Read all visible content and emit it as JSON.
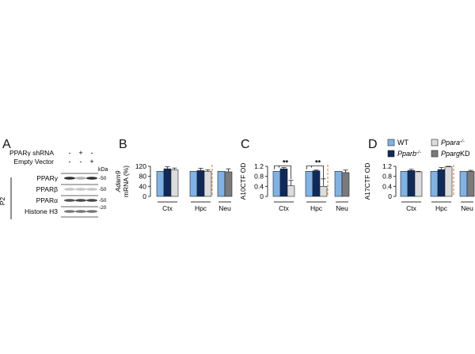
{
  "panels": {
    "A": {
      "label": "A"
    },
    "B": {
      "label": "B"
    },
    "C": {
      "label": "C"
    },
    "D": {
      "label": "D"
    }
  },
  "western_blot": {
    "conditions": [
      {
        "name": "PPARγ shRNA",
        "values": [
          "-",
          "+",
          "-"
        ]
      },
      {
        "name": "Empty Vector",
        "values": [
          "-",
          "-",
          "+"
        ]
      }
    ],
    "unit_label": "kDa",
    "fraction_label": "P2",
    "bands": [
      {
        "name": "PPARγ",
        "kda": "-50",
        "intensity": [
          0.9,
          0.35,
          0.9
        ]
      },
      {
        "name": "PPARβ",
        "kda": "-50",
        "intensity": [
          0.25,
          0.25,
          0.25
        ]
      },
      {
        "name": "PPARα",
        "kda": "-50",
        "intensity": [
          0.75,
          0.8,
          0.8
        ]
      },
      {
        "name": "Histone H3",
        "kda": "-20",
        "intensity": [
          0.6,
          0.6,
          0.6
        ]
      }
    ]
  },
  "legend": {
    "items": [
      {
        "label": "WT",
        "italic": false,
        "color": "#7fb3e6"
      },
      {
        "label": "Pparb",
        "suffix": "-/-",
        "italic": true,
        "color": "#0f2a5a"
      },
      {
        "label": "Ppara",
        "suffix": "-/-",
        "italic": true,
        "color": "#dcdcdc"
      },
      {
        "label": "Pparg",
        "suffix": "KD",
        "italic": true,
        "color": "#7a7a7a"
      }
    ]
  },
  "colors": {
    "wt": "#7fb3e6",
    "pparb": "#0f2a5a",
    "ppara": "#dcdcdc",
    "pparg": "#7a7a7a",
    "divider": "#e8955a",
    "axis": "#222222"
  },
  "chart_data": [
    {
      "panel": "B",
      "type": "bar",
      "ylabel": "Adam9 mRNA (%)",
      "ylim": [
        0,
        120
      ],
      "yticks": [
        0,
        40,
        80,
        120
      ],
      "categories": [
        "Ctx",
        "Hpc",
        "Neu"
      ],
      "series": [
        {
          "name": "WT",
          "values": [
            100,
            100,
            100
          ]
        },
        {
          "name": "Pparb-/-",
          "values": [
            110,
            103,
            null
          ]
        },
        {
          "name": "Ppara-/-",
          "values": [
            106,
            100,
            null
          ]
        },
        {
          "name": "PpargKD",
          "values": [
            null,
            null,
            98
          ]
        }
      ],
      "errors": {
        "Ctx": [
          0,
          8,
          7
        ],
        "Hpc": [
          0,
          9,
          6
        ],
        "Neu": [
          12
        ]
      }
    },
    {
      "panel": "C",
      "type": "bar",
      "ylabel": "A10CTF OD",
      "ylim": [
        0,
        1.2
      ],
      "yticks": [
        0,
        0.4,
        0.8,
        1.2
      ],
      "categories": [
        "Ctx",
        "Hpc",
        "Neu"
      ],
      "series": [
        {
          "name": "WT",
          "values": [
            1.0,
            1.0,
            1.0
          ]
        },
        {
          "name": "Pparb-/-",
          "values": [
            1.1,
            1.02,
            null
          ]
        },
        {
          "name": "Ppara-/-",
          "values": [
            0.42,
            0.4,
            null
          ]
        },
        {
          "name": "PpargKD",
          "values": [
            null,
            null,
            0.95
          ]
        }
      ],
      "errors": {
        "Ctx": [
          0,
          0.05,
          0.22
        ],
        "Hpc": [
          0,
          0.03,
          0.3
        ],
        "Neu": [
          0.1
        ]
      },
      "annotations": [
        "**",
        "**"
      ]
    },
    {
      "panel": "D",
      "type": "bar",
      "ylabel": "A17CTF OD",
      "ylim": [
        0,
        1.2
      ],
      "yticks": [
        0,
        0.4,
        0.8,
        1.2
      ],
      "categories": [
        "Ctx",
        "Hpc",
        "Neu"
      ],
      "series": [
        {
          "name": "WT",
          "values": [
            1.0,
            1.0,
            1.0
          ]
        },
        {
          "name": "Pparb-/-",
          "values": [
            1.03,
            1.07,
            null
          ]
        },
        {
          "name": "Ppara-/-",
          "values": [
            0.98,
            1.18,
            null
          ]
        },
        {
          "name": "PpargKD",
          "values": [
            null,
            null,
            1.0
          ]
        }
      ],
      "errors": {
        "Ctx": [
          0,
          0.05,
          0.02
        ],
        "Hpc": [
          0,
          0.08,
          0.02
        ],
        "Neu": [
          0.04
        ]
      }
    }
  ]
}
